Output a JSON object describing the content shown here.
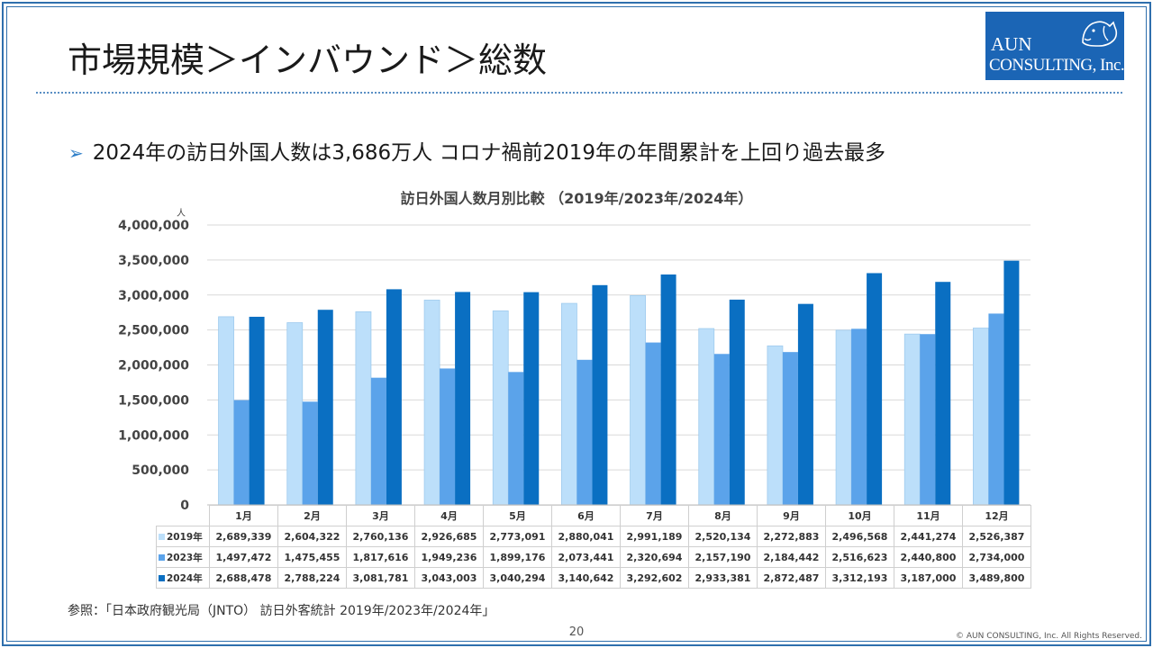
{
  "slide": {
    "title": "市場規模＞インバウンド＞総数",
    "bullet": "2024年の訪日外国人数は3,686万人 コロナ禍前2019年の年間累計を上回り過去最多",
    "source": "参照：「日本政府観光局（JNTO） 訪日外客統計 2019年/2023年/2024年」",
    "page_number": "20",
    "copyright": "© AUN CONSULTING, Inc. All Rights Reserved."
  },
  "logo": {
    "line1": "AUN",
    "line2": "CONSULTING, Inc.",
    "icon": "dog-icon"
  },
  "colors": {
    "2019": "#bcdffa",
    "2023": "#5ba3ea",
    "2024": "#0a6fc2",
    "frame": "#2f6fad"
  },
  "chart_data": {
    "type": "bar",
    "title": "訪日外国人数月別比較 （2019年/2023年/2024年）",
    "ylabel": "人",
    "xlabel": "",
    "ylim": [
      0,
      4000000
    ],
    "yticks": [
      "0",
      "500,000",
      "1,000,000",
      "1,500,000",
      "2,000,000",
      "2,500,000",
      "3,000,000",
      "3,500,000",
      "4,000,000"
    ],
    "grid": true,
    "categories": [
      "1月",
      "2月",
      "3月",
      "4月",
      "5月",
      "6月",
      "7月",
      "8月",
      "9月",
      "10月",
      "11月",
      "12月"
    ],
    "series": [
      {
        "name": "2019年",
        "values": [
          2689339,
          2604322,
          2760136,
          2926685,
          2773091,
          2880041,
          2991189,
          2520134,
          2272883,
          2496568,
          2441274,
          2526387
        ],
        "labels": [
          "2,689,339",
          "2,604,322",
          "2,760,136",
          "2,926,685",
          "2,773,091",
          "2,880,041",
          "2,991,189",
          "2,520,134",
          "2,272,883",
          "2,496,568",
          "2,441,274",
          "2,526,387"
        ]
      },
      {
        "name": "2023年",
        "values": [
          1497472,
          1475455,
          1817616,
          1949236,
          1899176,
          2073441,
          2320694,
          2157190,
          2184442,
          2516623,
          2440800,
          2734000
        ],
        "labels": [
          "1,497,472",
          "1,475,455",
          "1,817,616",
          "1,949,236",
          "1,899,176",
          "2,073,441",
          "2,320,694",
          "2,157,190",
          "2,184,442",
          "2,516,623",
          "2,440,800",
          "2,734,000"
        ]
      },
      {
        "name": "2024年",
        "values": [
          2688478,
          2788224,
          3081781,
          3043003,
          3040294,
          3140642,
          3292602,
          2933381,
          2872487,
          3312193,
          3187000,
          3489800
        ],
        "labels": [
          "2,688,478",
          "2,788,224",
          "3,081,781",
          "3,043,003",
          "3,040,294",
          "3,140,642",
          "3,292,602",
          "2,933,381",
          "2,872,487",
          "3,312,193",
          "3,187,000",
          "3,489,800"
        ]
      }
    ]
  }
}
